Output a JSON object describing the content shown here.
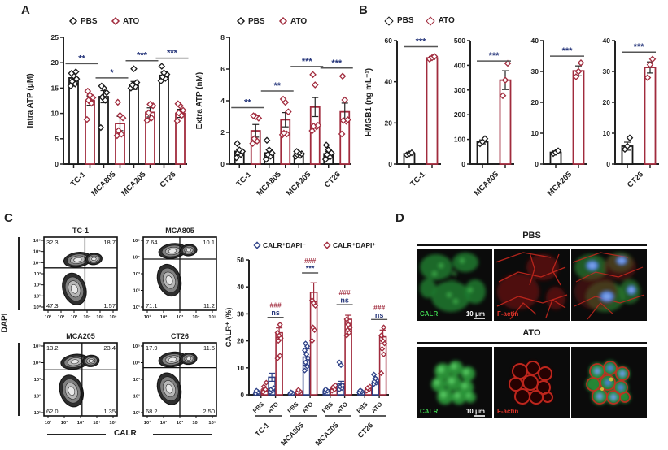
{
  "panels": {
    "a": "A",
    "b": "B",
    "c": "C",
    "d": "D"
  },
  "legend_pbs": "PBS",
  "legend_ato": "ATO",
  "colors": {
    "pbs_black": "#1a1a1a",
    "ato_maroon": "#A12B3D",
    "navy_blue": "#2E4187",
    "sig_navy": "#25357A",
    "sig_red": "#A12B3D",
    "axis": "#222222",
    "sig_line": "#555555",
    "green_label": "#3FD04F",
    "red_label": "#E5352B",
    "white_label": "#FFFFFF"
  },
  "chart_data": [
    {
      "id": "intra_atp",
      "type": "bar",
      "ylabel": "Intra ATP (μM)",
      "ylim": [
        0,
        25
      ],
      "yticks": [
        0,
        5,
        10,
        15,
        20,
        25
      ],
      "categories": [
        "TC-1",
        "MCA805",
        "MCA205",
        "CT26"
      ],
      "series": [
        {
          "name": "PBS",
          "values": [
            17,
            13.3,
            15.5,
            17.5
          ],
          "err": [
            0.8,
            1.2,
            0.8,
            0.6
          ],
          "points": [
            [
              15.4,
              15.8,
              16.3,
              16.8,
              17.4,
              17.9,
              18.2
            ],
            [
              7.2,
              12.6,
              13.2,
              14.1,
              15,
              15.4
            ],
            [
              15,
              15.3,
              15.6,
              16.1,
              18.8
            ],
            [
              16.4,
              16.9,
              17.2,
              17.7,
              18,
              19.3
            ]
          ]
        },
        {
          "name": "ATO",
          "values": [
            12.5,
            8,
            10.2,
            10
          ],
          "err": [
            0.9,
            1.4,
            0.9,
            0.8
          ],
          "points": [
            [
              8.8,
              12,
              12.6,
              13.1,
              13.6,
              14.4
            ],
            [
              5.6,
              5.9,
              6.6,
              9.1,
              9.6,
              12.2
            ],
            [
              8.6,
              9.1,
              10.1,
              11.5,
              11.8
            ],
            [
              8.5,
              9.6,
              10.1,
              10.6,
              11.5,
              11.9
            ]
          ]
        }
      ],
      "sig": [
        "**",
        "*",
        "***",
        "***"
      ]
    },
    {
      "id": "extra_atp",
      "type": "bar",
      "ylabel": "Extra ATP (nM)",
      "ylim": [
        0,
        8
      ],
      "yticks": [
        0,
        2,
        4,
        6,
        8
      ],
      "categories": [
        "TC-1",
        "MCA805",
        "MCA205",
        "CT26"
      ],
      "series": [
        {
          "name": "PBS",
          "values": [
            0.8,
            0.7,
            0.65,
            0.65
          ],
          "err": [
            0.15,
            0.2,
            0.08,
            0.15
          ],
          "points": [
            [
              0.4,
              0.6,
              0.7,
              0.8,
              0.9,
              1.3
            ],
            [
              0.3,
              0.5,
              0.6,
              0.7,
              0.9,
              1.5
            ],
            [
              0.5,
              0.55,
              0.6,
              0.65,
              0.7,
              0.8
            ],
            [
              0.3,
              0.45,
              0.6,
              0.7,
              0.9,
              1.2
            ]
          ]
        },
        {
          "name": "ATO",
          "values": [
            2.1,
            2.8,
            3.6,
            3.3
          ],
          "err": [
            0.4,
            0.45,
            0.6,
            0.55
          ],
          "points": [
            [
              1.3,
              1.45,
              1.6,
              2.9,
              3.0,
              3.05
            ],
            [
              1.85,
              1.9,
              1.95,
              3.3,
              3.9,
              4.1
            ],
            [
              2.1,
              2.35,
              2.4,
              2.45,
              5.0,
              5.65
            ],
            [
              1.9,
              2.7,
              2.75,
              2.8,
              4.05,
              5.55
            ]
          ]
        }
      ],
      "sig": [
        "**",
        "**",
        "***",
        "***"
      ]
    },
    {
      "id": "hmgb1",
      "type": "bar",
      "ylabel": "HMGB1 (ng mL⁻¹)",
      "subcharts": [
        {
          "category": "TC-1",
          "ylim": [
            0,
            60
          ],
          "yticks": [
            0,
            20,
            40,
            60
          ],
          "pbs": {
            "value": 5,
            "err": 0.4,
            "points": [
              4.5,
              5,
              5.5
            ]
          },
          "ato": {
            "value": 51.6,
            "err": 0.7,
            "points": [
              51,
              51.7,
              52.3
            ]
          },
          "sig": "***"
        },
        {
          "category": "MCA805",
          "ylim": [
            0,
            500
          ],
          "yticks": [
            0,
            100,
            200,
            300,
            400,
            500
          ],
          "pbs": {
            "value": 90,
            "err": 8,
            "points": [
              82,
              90,
              103
            ]
          },
          "ato": {
            "value": 340,
            "err": 38,
            "points": [
              277,
              340,
              408
            ]
          },
          "sig": "***"
        },
        {
          "category": "MCA205",
          "ylim": [
            0,
            40
          ],
          "yticks": [
            0,
            10,
            20,
            30,
            40
          ],
          "pbs": {
            "value": 3.8,
            "err": 0.4,
            "points": [
              3.4,
              3.8,
              4.3
            ]
          },
          "ato": {
            "value": 30.2,
            "err": 1.6,
            "points": [
              28.3,
              30,
              32.8
            ]
          },
          "sig": "***"
        },
        {
          "category": "CT26",
          "ylim": [
            0,
            40
          ],
          "yticks": [
            0,
            10,
            20,
            30,
            40
          ],
          "pbs": {
            "value": 5.8,
            "err": 1.3,
            "points": [
              4.8,
              5.8,
              8.5
            ]
          },
          "ato": {
            "value": 31.3,
            "err": 1.8,
            "points": [
              28,
              32.2,
              34
            ]
          },
          "sig": "***"
        }
      ]
    },
    {
      "id": "calr_pct",
      "type": "bar",
      "ylabel": "CALR⁺ (%)",
      "ylim": [
        0,
        50
      ],
      "yticks": [
        0,
        10,
        20,
        30,
        40,
        50
      ],
      "legend": [
        "CALR⁺DAPI⁻",
        "CALR⁺DAPI⁺"
      ],
      "groups": [
        "TC-1",
        "MCA805",
        "MCA205",
        "CT26"
      ],
      "treatments": [
        "PBS",
        "ATO"
      ],
      "series": [
        {
          "name": "CALR⁺DAPI⁻",
          "values": [
            [
              1,
              6.5
            ],
            [
              0.6,
              14
            ],
            [
              1.5,
              4
            ],
            [
              1.2,
              5
            ]
          ],
          "err": [
            [
              0.3,
              1.5
            ],
            [
              0.2,
              3
            ],
            [
              0.4,
              1
            ],
            [
              0.3,
              1
            ]
          ],
          "points": [
            [
              [
                0.5,
                1,
                1.5
              ],
              [
                1,
                1.5,
                2,
                2.5
              ]
            ],
            [
              [
                0.4,
                0.6,
                0.9
              ],
              [
                9,
                10.5,
                12,
                13.5,
                15,
                16.5,
                18,
                19
              ]
            ],
            [
              [
                1,
                1.5,
                2
              ],
              [
                2,
                2.5,
                3,
                3.5,
                11,
                12
              ]
            ],
            [
              [
                0.8,
                1.2,
                1.6
              ],
              [
                4,
                4.5,
                5,
                5.5,
                6,
                7.5
              ]
            ]
          ]
        },
        {
          "name": "CALR⁺DAPI⁺",
          "values": [
            [
              1.8,
              23
            ],
            [
              1.2,
              38
            ],
            [
              2.2,
              28
            ],
            [
              2.2,
              21.5
            ]
          ],
          "err": [
            [
              0.4,
              1.8
            ],
            [
              0.3,
              3.5
            ],
            [
              0.4,
              1.5
            ],
            [
              0.4,
              2.5
            ]
          ],
          "points": [
            [
              [
                1,
                2,
                3,
                4.5
              ],
              [
                13.5,
                14.5,
                20,
                21,
                22,
                23,
                26
              ]
            ],
            [
              [
                0.8,
                1.2,
                1.8
              ],
              [
                20,
                24,
                25,
                33,
                34,
                35
              ]
            ],
            [
              [
                1.5,
                2,
                2.8,
                3.5
              ],
              [
                22,
                23,
                24,
                25,
                26,
                28
              ]
            ],
            [
              [
                1.5,
                2,
                2.5,
                3
              ],
              [
                8,
                15,
                17,
                19,
                20,
                22,
                25
              ]
            ]
          ]
        }
      ],
      "sig_blue": [
        "ns",
        "***",
        "ns",
        "ns"
      ],
      "sig_red": [
        "###",
        "###",
        "###",
        "###"
      ]
    }
  ],
  "flow": {
    "xlabel": "CALR",
    "ylabel": "DAPI",
    "plots": [
      {
        "title": "TC-1",
        "ul": "32.3",
        "ur": "18.7",
        "ll": "47.3",
        "lr": "1.57",
        "yticks": [
          "10⁶",
          "10⁵",
          "10⁴",
          "10³",
          "10²",
          "10¹",
          "10⁰"
        ],
        "xticks": [
          "10¹",
          "10²",
          "10³",
          "10⁴",
          "10⁵",
          "10⁶"
        ],
        "vx": 0.56,
        "hy": 0.42
      },
      {
        "title": "MCA805",
        "ul": "7.64",
        "ur": "10.1",
        "ll": "71.1",
        "lr": "11.2",
        "yticks": [
          "10⁵",
          "10⁴",
          "10³",
          "10²",
          "10¹"
        ],
        "xticks": [
          "10¹",
          "10²",
          "10³",
          "10⁴",
          "10⁵"
        ],
        "vx": 0.5,
        "hy": 0.3
      },
      {
        "title": "MCA205",
        "ul": "13.2",
        "ur": "23.4",
        "ll": "62.0",
        "lr": "1.35",
        "yticks": [
          "10⁵",
          "10⁴",
          "10³",
          "10²",
          "10¹"
        ],
        "xticks": [
          "10¹",
          "10²",
          "10³",
          "10⁴",
          "10⁵"
        ],
        "vx": 0.52,
        "hy": 0.37
      },
      {
        "title": "CT26",
        "ul": "17.9",
        "ur": "11.5",
        "ll": "68.2",
        "lr": "2.50",
        "yticks": [
          "10⁵",
          "10⁴",
          "10³",
          "10²",
          "10¹"
        ],
        "xticks": [
          "10¹",
          "10²",
          "10³",
          "10⁴",
          "10⁵"
        ],
        "vx": 0.5,
        "hy": 0.34
      }
    ]
  },
  "micro": {
    "rows": [
      {
        "title": "PBS"
      },
      {
        "title": "ATO"
      }
    ],
    "calr_label": "CALR",
    "factin_label": "F-actin",
    "scale_label": "10 μm"
  }
}
